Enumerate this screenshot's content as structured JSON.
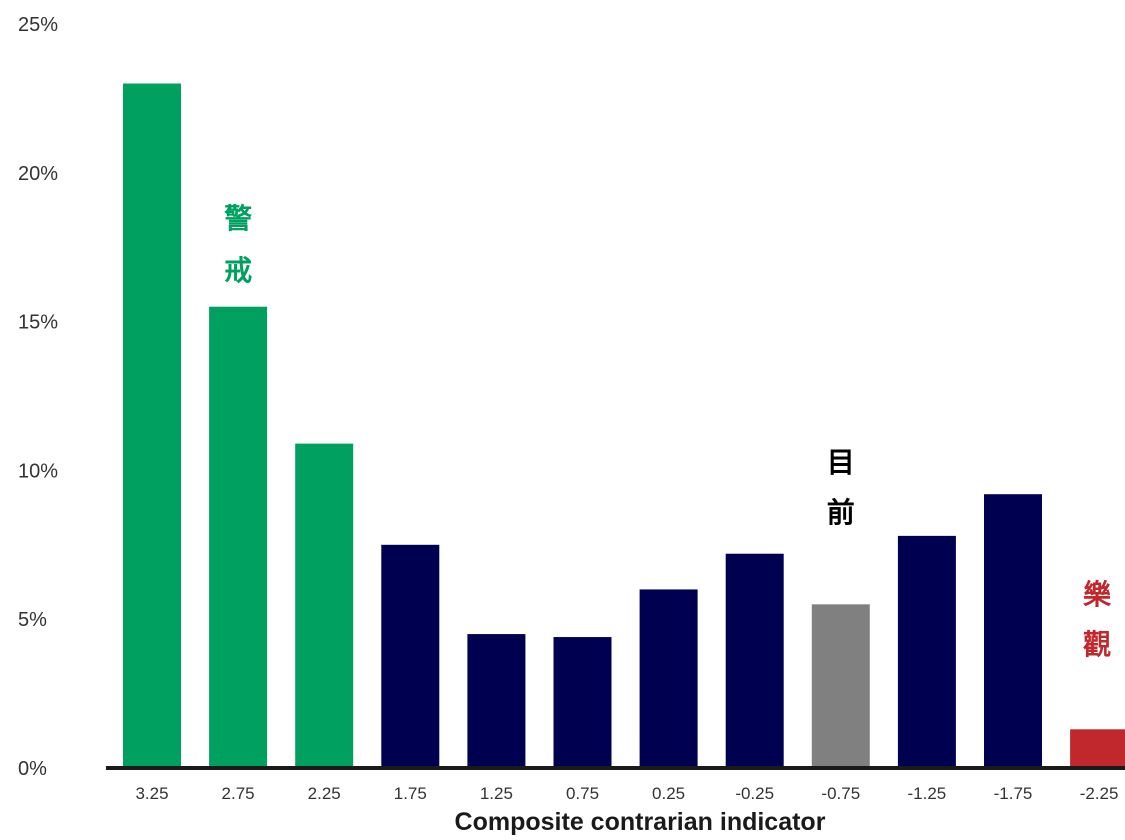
{
  "chart_data": {
    "type": "bar",
    "title": "",
    "xlabel": "Composite contrarian indicator",
    "ylabel": "",
    "ylim": [
      0,
      25
    ],
    "yticks": [
      "0%",
      "5%",
      "10%",
      "15%",
      "20%",
      "25%"
    ],
    "grid": false,
    "legend": "none",
    "categories": [
      "3.25",
      "2.75",
      "2.25",
      "1.75",
      "1.25",
      "0.75",
      "0.25",
      "-0.25",
      "-0.75",
      "-1.25",
      "-1.75",
      "-2.25"
    ],
    "values": [
      23.0,
      15.5,
      10.9,
      7.5,
      4.5,
      4.4,
      6.0,
      7.2,
      5.5,
      7.8,
      9.2,
      1.3
    ],
    "bar_colors": [
      "#00a060",
      "#00a060",
      "#00a060",
      "#000050",
      "#000050",
      "#000050",
      "#000050",
      "#000050",
      "#808080",
      "#000050",
      "#000050",
      "#c0282d"
    ],
    "annotations": [
      {
        "text": "警戒",
        "color": "#00a060",
        "category": "2.75"
      },
      {
        "text": "目前",
        "color": "#000000",
        "category": "-0.75"
      },
      {
        "text": "樂觀",
        "color": "#c0282d",
        "category": "-2.25"
      }
    ]
  }
}
